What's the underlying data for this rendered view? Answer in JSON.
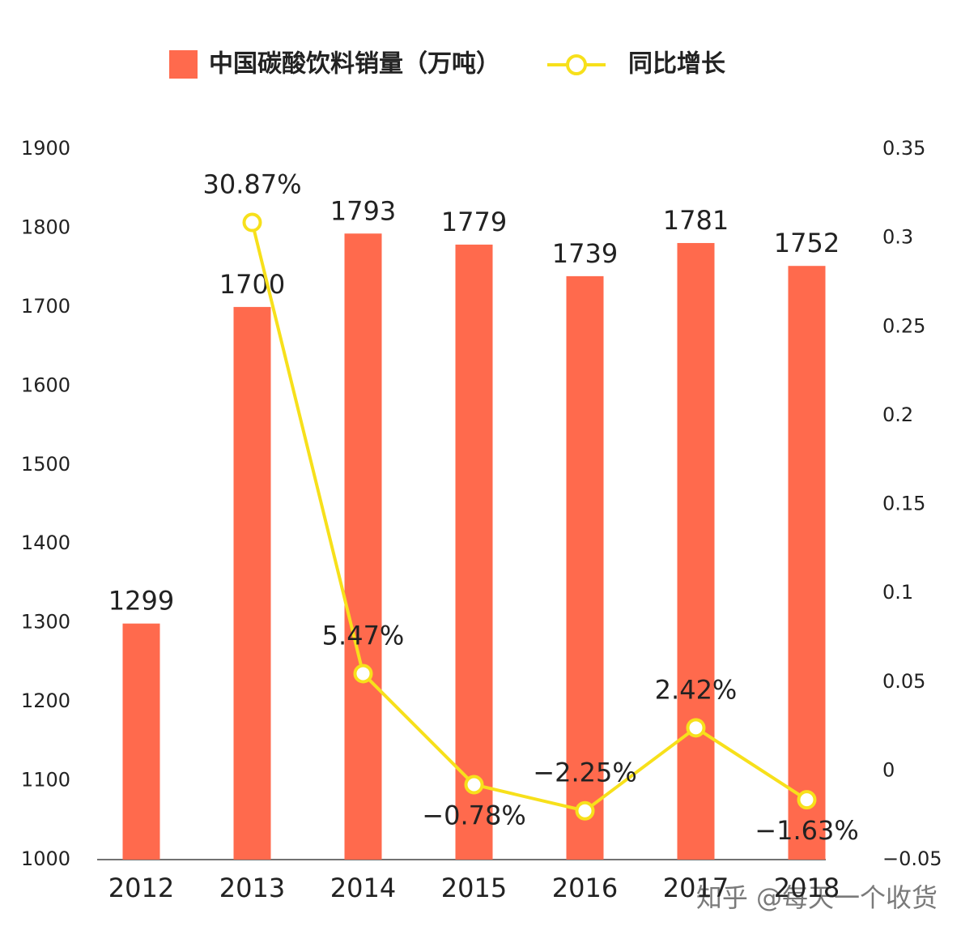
{
  "chart_data": {
    "type": "bar-line",
    "categories": [
      "2012",
      "2013",
      "2014",
      "2015",
      "2016",
      "2017",
      "2018"
    ],
    "series": [
      {
        "name": "中国碳酸饮料销量（万吨）",
        "type": "bar",
        "color": "#ff6a4d",
        "values": [
          1299,
          1700,
          1793,
          1779,
          1739,
          1781,
          1752
        ]
      },
      {
        "name": "同比增长",
        "type": "line",
        "axis": "y2",
        "color": "#f7e01b",
        "values": [
          null,
          0.3087,
          0.0547,
          -0.0078,
          -0.0225,
          0.0242,
          -0.0163
        ],
        "value_labels": [
          null,
          "30.87%",
          "5.47%",
          "−0.78%",
          "−2.25%",
          "2.42%",
          "−1.63%"
        ]
      }
    ],
    "ylim": [
      1000,
      1900
    ],
    "yticks": [
      1000,
      1100,
      1200,
      1300,
      1400,
      1500,
      1600,
      1700,
      1800,
      1900
    ],
    "y2lim": [
      -0.05,
      0.35
    ],
    "y2ticks": [
      {
        "value": -0.05,
        "label": "−0.05"
      },
      0,
      0.05,
      0.1,
      0.15,
      0.2,
      0.25,
      0.3,
      0.35
    ],
    "watermark": "知乎 @每天一个收货"
  }
}
